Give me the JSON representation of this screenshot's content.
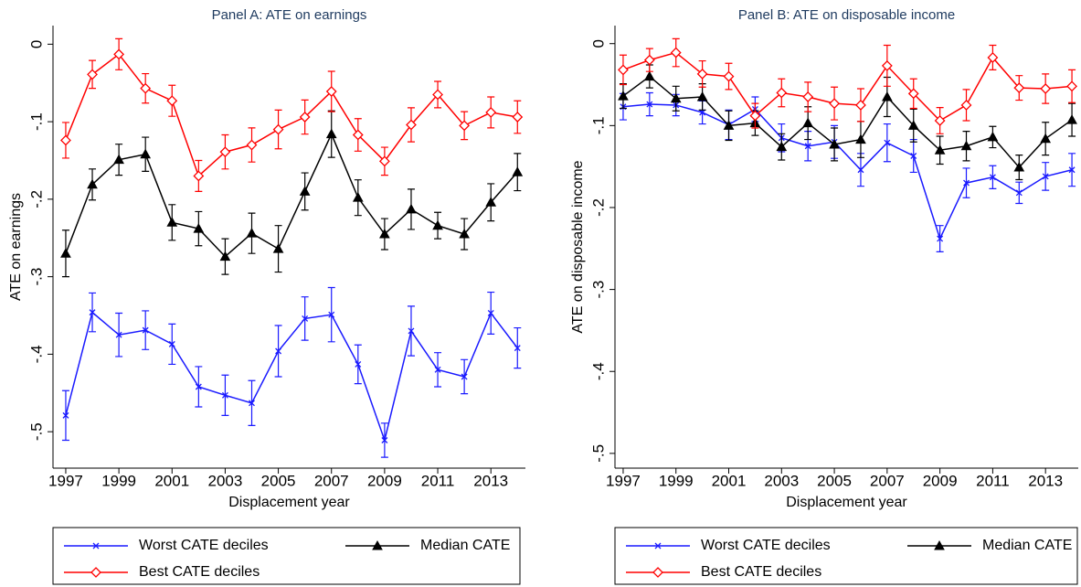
{
  "chart_data": [
    {
      "type": "line",
      "title": "Panel A: ATE on earnings",
      "xlabel": "Displacement year",
      "ylabel": "ATE on earnings",
      "x": [
        1997,
        1998,
        1999,
        2000,
        2001,
        2002,
        2003,
        2004,
        2005,
        2006,
        2007,
        2008,
        2009,
        2010,
        2011,
        2012,
        2013,
        2014
      ],
      "xlim": [
        1996.52,
        2014.3
      ],
      "xticks": [
        1997,
        1999,
        2001,
        2003,
        2005,
        2007,
        2009,
        2011,
        2013
      ],
      "ylim": [
        -0.547,
        0.024
      ],
      "yticks": [
        0,
        {
          "value": -0.1,
          "label": "-.1"
        },
        {
          "value": -0.2,
          "label": "-.2"
        },
        {
          "value": -0.3,
          "label": "-.3"
        },
        {
          "value": -0.4,
          "label": "-.4"
        },
        {
          "value": -0.5,
          "label": "-.5"
        }
      ],
      "series": [
        {
          "name": "Worst CATE deciles",
          "color": "#1a1aff",
          "marker": "x",
          "values": [
            -0.479,
            -0.346,
            -0.375,
            -0.369,
            -0.387,
            -0.442,
            -0.453,
            -0.463,
            -0.396,
            -0.354,
            -0.349,
            -0.413,
            -0.511,
            -0.37,
            -0.42,
            -0.429,
            -0.347,
            -0.392
          ],
          "errors": [
            0.032,
            0.025,
            0.028,
            0.025,
            0.026,
            0.026,
            0.026,
            0.029,
            0.033,
            0.028,
            0.035,
            0.025,
            0.022,
            0.032,
            0.022,
            0.022,
            0.027,
            0.026
          ]
        },
        {
          "name": "Median CATE",
          "color": "#000000",
          "marker": "triangle",
          "values": [
            -0.27,
            -0.181,
            -0.149,
            -0.142,
            -0.23,
            -0.238,
            -0.274,
            -0.244,
            -0.264,
            -0.19,
            -0.116,
            -0.198,
            -0.245,
            -0.213,
            -0.234,
            -0.245,
            -0.204,
            -0.165
          ],
          "errors": [
            0.03,
            0.02,
            0.02,
            0.022,
            0.023,
            0.022,
            0.023,
            0.026,
            0.03,
            0.024,
            0.03,
            0.023,
            0.02,
            0.026,
            0.017,
            0.02,
            0.024,
            0.024
          ]
        },
        {
          "name": "Best CATE deciles",
          "color": "#ff0000",
          "marker": "diamond",
          "values": [
            -0.124,
            -0.039,
            -0.013,
            -0.057,
            -0.073,
            -0.17,
            -0.139,
            -0.13,
            -0.11,
            -0.094,
            -0.061,
            -0.117,
            -0.151,
            -0.104,
            -0.065,
            -0.105,
            -0.088,
            -0.094
          ],
          "errors": [
            0.023,
            0.018,
            0.02,
            0.019,
            0.02,
            0.02,
            0.022,
            0.022,
            0.025,
            0.022,
            0.026,
            0.021,
            0.018,
            0.022,
            0.017,
            0.018,
            0.02,
            0.021
          ]
        }
      ]
    },
    {
      "type": "line",
      "title": "Panel B: ATE on disposable income",
      "xlabel": "Displacement year",
      "ylabel": "ATE on disposable income",
      "x": [
        1997,
        1998,
        1999,
        2000,
        2001,
        2002,
        2003,
        2004,
        2005,
        2006,
        2007,
        2008,
        2009,
        2010,
        2011,
        2012,
        2013,
        2014
      ],
      "xlim": [
        1996.69,
        2014.24
      ],
      "xticks": [
        1997,
        1999,
        2001,
        2003,
        2005,
        2007,
        2009,
        2011,
        2013
      ],
      "ylim": [
        -0.518,
        0.022
      ],
      "yticks": [
        0,
        {
          "value": -0.1,
          "label": "-.1"
        },
        {
          "value": -0.2,
          "label": "-.2"
        },
        {
          "value": -0.3,
          "label": "-.3"
        },
        {
          "value": -0.4,
          "label": "-.4"
        },
        {
          "value": -0.5,
          "label": "-.5"
        }
      ],
      "series": [
        {
          "name": "Worst CATE deciles",
          "color": "#1a1aff",
          "marker": "x",
          "values": [
            -0.077,
            -0.074,
            -0.075,
            -0.084,
            -0.099,
            -0.08,
            -0.115,
            -0.125,
            -0.12,
            -0.154,
            -0.121,
            -0.137,
            -0.238,
            -0.17,
            -0.163,
            -0.182,
            -0.162,
            -0.154
          ],
          "errors": [
            0.016,
            0.014,
            0.013,
            0.014,
            0.018,
            0.015,
            0.017,
            0.018,
            0.02,
            0.02,
            0.023,
            0.02,
            0.016,
            0.018,
            0.014,
            0.013,
            0.017,
            0.02
          ]
        },
        {
          "name": "Median CATE",
          "color": "#000000",
          "marker": "triangle",
          "values": [
            -0.064,
            -0.04,
            -0.067,
            -0.065,
            -0.1,
            -0.097,
            -0.126,
            -0.097,
            -0.123,
            -0.117,
            -0.065,
            -0.1,
            -0.13,
            -0.125,
            -0.114,
            -0.151,
            -0.116,
            -0.093
          ],
          "errors": [
            0.015,
            0.014,
            0.015,
            0.016,
            0.018,
            0.015,
            0.016,
            0.02,
            0.02,
            0.022,
            0.024,
            0.02,
            0.017,
            0.018,
            0.013,
            0.015,
            0.02,
            0.02
          ]
        },
        {
          "name": "Best CATE deciles",
          "color": "#ff0000",
          "marker": "diamond",
          "values": [
            -0.032,
            -0.02,
            -0.011,
            -0.037,
            -0.04,
            -0.088,
            -0.06,
            -0.065,
            -0.073,
            -0.075,
            -0.027,
            -0.061,
            -0.094,
            -0.075,
            -0.017,
            -0.054,
            -0.055,
            -0.052
          ],
          "errors": [
            0.018,
            0.014,
            0.017,
            0.016,
            0.016,
            0.015,
            0.017,
            0.018,
            0.02,
            0.02,
            0.025,
            0.018,
            0.016,
            0.019,
            0.015,
            0.015,
            0.018,
            0.02
          ]
        }
      ]
    }
  ]
}
